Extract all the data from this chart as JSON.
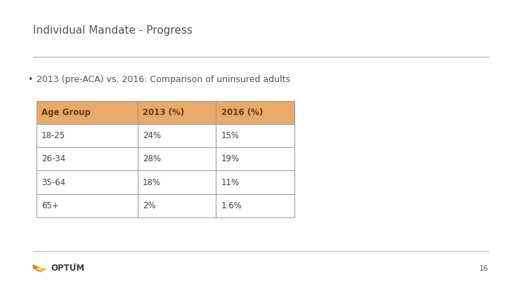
{
  "title": "Individual Mandate - Progress",
  "bullet_text": "2013 (pre-ACA) vs. 2016: Comparison of uninsured adults",
  "table_headers": [
    "Age Group",
    "2013 (%)",
    "2016 (%)"
  ],
  "table_rows": [
    [
      "18-25",
      "24%",
      "15%"
    ],
    [
      "26-34",
      "28%",
      "19%"
    ],
    [
      "35-64",
      "18%",
      "11%"
    ],
    [
      "65+",
      "2%",
      "1.6%"
    ]
  ],
  "header_bg_color": "#E8A96A",
  "header_text_color": "#5C3D1E",
  "row_bg_color": "#FFFFFF",
  "table_border_color": "#999999",
  "title_color": "#555555",
  "bullet_color": "#555555",
  "bg_color": "#FFFFFF",
  "separator_color": "#AAAAAA",
  "page_number": "16",
  "footer_line_color": "#BBBBBB",
  "optum_text_color": "#404040",
  "optum_logo_orange": "#E87A00",
  "optum_logo_yellow": "#F5B800"
}
